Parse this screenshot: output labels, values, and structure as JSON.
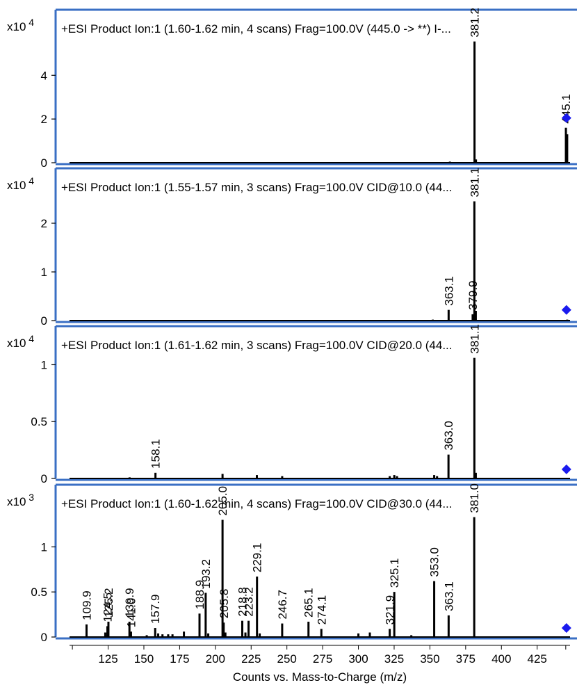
{
  "chart_data": {
    "type": "bar",
    "xlabel": "Counts vs. Mass-to-Charge (m/z)",
    "x_ticks": [
      125,
      150,
      175,
      200,
      225,
      250,
      275,
      300,
      325,
      350,
      375,
      400,
      425
    ],
    "xlim": [
      98,
      448
    ],
    "precursor_mz": 445.0,
    "colors": {
      "frame": "#3a6fc4",
      "marker": "#1a1aee",
      "peaks": "#000000"
    },
    "panels": [
      {
        "title": "+ESI Product Ion:1 (1.60-1.62 min, 4 scans) Frag=100.0V (445.0 -> **) I-...",
        "exponent_label": "x10 4",
        "ylim": [
          0,
          5.6
        ],
        "y_ticks": [
          0,
          2,
          4
        ],
        "y_tick_labels": [
          "0",
          "2",
          "4"
        ],
        "precursor_marker_y": 2.05,
        "peaks": [
          {
            "mz": 364.0,
            "y": 0.05
          },
          {
            "mz": 381.2,
            "y": 5.55,
            "label": "381.2"
          },
          {
            "mz": 382.2,
            "y": 0.15
          },
          {
            "mz": 445.1,
            "y": 1.6,
            "label": "445.1"
          },
          {
            "mz": 446.0,
            "y": 1.3
          }
        ]
      },
      {
        "title": "+ESI Product Ion:1 (1.55-1.57 min, 3 scans) Frag=100.0V CID@10.0 (44...",
        "exponent_label": "x10 4",
        "ylim": [
          0,
          2.5
        ],
        "y_ticks": [
          0,
          1,
          2
        ],
        "y_tick_labels": [
          "0",
          "1",
          "2"
        ],
        "precursor_marker_y": 0.22,
        "peaks": [
          {
            "mz": 352.0,
            "y": 0.02
          },
          {
            "mz": 363.1,
            "y": 0.22,
            "label": "363.1"
          },
          {
            "mz": 379.9,
            "y": 0.13,
            "label": "379.9"
          },
          {
            "mz": 381.1,
            "y": 2.45,
            "label": "381.1"
          },
          {
            "mz": 382.1,
            "y": 0.2
          },
          {
            "mz": 446.0,
            "y": 0.02
          }
        ]
      },
      {
        "title": "+ESI Product Ion:1 (1.61-1.62 min, 3 scans) Frag=100.0V CID@20.0 (44...",
        "exponent_label": "x10 4",
        "ylim": [
          0,
          1.07
        ],
        "y_ticks": [
          0,
          0.5,
          1
        ],
        "y_tick_labels": [
          "0",
          "0.5",
          "1"
        ],
        "precursor_marker_y": 0.08,
        "peaks": [
          {
            "mz": 140.0,
            "y": 0.01
          },
          {
            "mz": 158.1,
            "y": 0.05,
            "label": "158.1"
          },
          {
            "mz": 205.0,
            "y": 0.04
          },
          {
            "mz": 229.0,
            "y": 0.03
          },
          {
            "mz": 246.7,
            "y": 0.02
          },
          {
            "mz": 321.9,
            "y": 0.02
          },
          {
            "mz": 325.1,
            "y": 0.03
          },
          {
            "mz": 327.0,
            "y": 0.02
          },
          {
            "mz": 353.0,
            "y": 0.03
          },
          {
            "mz": 355.0,
            "y": 0.02
          },
          {
            "mz": 363.0,
            "y": 0.21,
            "label": "363.0"
          },
          {
            "mz": 381.1,
            "y": 1.06,
            "label": "381.1"
          },
          {
            "mz": 382.1,
            "y": 0.05
          }
        ]
      },
      {
        "title": "+ESI Product Ion:1 (1.60-1.62 min, 4 scans) Frag=100.0V CID@30.0 (44...",
        "exponent_label": "x10 3",
        "ylim": [
          0,
          1.35
        ],
        "y_ticks": [
          0,
          0.5,
          1
        ],
        "y_tick_labels": [
          "0",
          "0.5",
          "1"
        ],
        "precursor_marker_y": 0.1,
        "peaks": [
          {
            "mz": 109.9,
            "y": 0.14,
            "label": "109.9"
          },
          {
            "mz": 123.0,
            "y": 0.05
          },
          {
            "mz": 124.5,
            "y": 0.12,
            "label": "124.5"
          },
          {
            "mz": 125.2,
            "y": 0.17,
            "label": "125.2"
          },
          {
            "mz": 139.9,
            "y": 0.17,
            "label": "139.9"
          },
          {
            "mz": 141.0,
            "y": 0.06,
            "label": "141.0"
          },
          {
            "mz": 152.0,
            "y": 0.02
          },
          {
            "mz": 157.9,
            "y": 0.1,
            "label": "157.9"
          },
          {
            "mz": 160.0,
            "y": 0.04
          },
          {
            "mz": 163.0,
            "y": 0.03
          },
          {
            "mz": 167.0,
            "y": 0.03
          },
          {
            "mz": 170.0,
            "y": 0.03
          },
          {
            "mz": 178.0,
            "y": 0.06
          },
          {
            "mz": 188.9,
            "y": 0.26,
            "label": "188.9"
          },
          {
            "mz": 193.2,
            "y": 0.49,
            "label": "193.2"
          },
          {
            "mz": 195.0,
            "y": 0.04
          },
          {
            "mz": 205.0,
            "y": 1.3,
            "label": "205.0"
          },
          {
            "mz": 205.8,
            "y": 0.16,
            "label": "205.8"
          },
          {
            "mz": 207.0,
            "y": 0.05
          },
          {
            "mz": 218.8,
            "y": 0.18,
            "label": "218.8"
          },
          {
            "mz": 221.0,
            "y": 0.05
          },
          {
            "mz": 223.2,
            "y": 0.18,
            "label": "223.2"
          },
          {
            "mz": 229.1,
            "y": 0.67,
            "label": "229.1"
          },
          {
            "mz": 231.0,
            "y": 0.04
          },
          {
            "mz": 246.7,
            "y": 0.15,
            "label": "246.7"
          },
          {
            "mz": 265.1,
            "y": 0.17,
            "label": "265.1"
          },
          {
            "mz": 274.1,
            "y": 0.09,
            "label": "274.1"
          },
          {
            "mz": 300.0,
            "y": 0.04
          },
          {
            "mz": 308.0,
            "y": 0.05
          },
          {
            "mz": 321.9,
            "y": 0.09,
            "label": "321.9"
          },
          {
            "mz": 325.1,
            "y": 0.5,
            "label": "325.1"
          },
          {
            "mz": 337.0,
            "y": 0.02
          },
          {
            "mz": 353.0,
            "y": 0.62,
            "label": "353.0"
          },
          {
            "mz": 363.1,
            "y": 0.24,
            "label": "363.1"
          },
          {
            "mz": 381.0,
            "y": 1.33,
            "label": "381.0"
          }
        ]
      }
    ]
  }
}
